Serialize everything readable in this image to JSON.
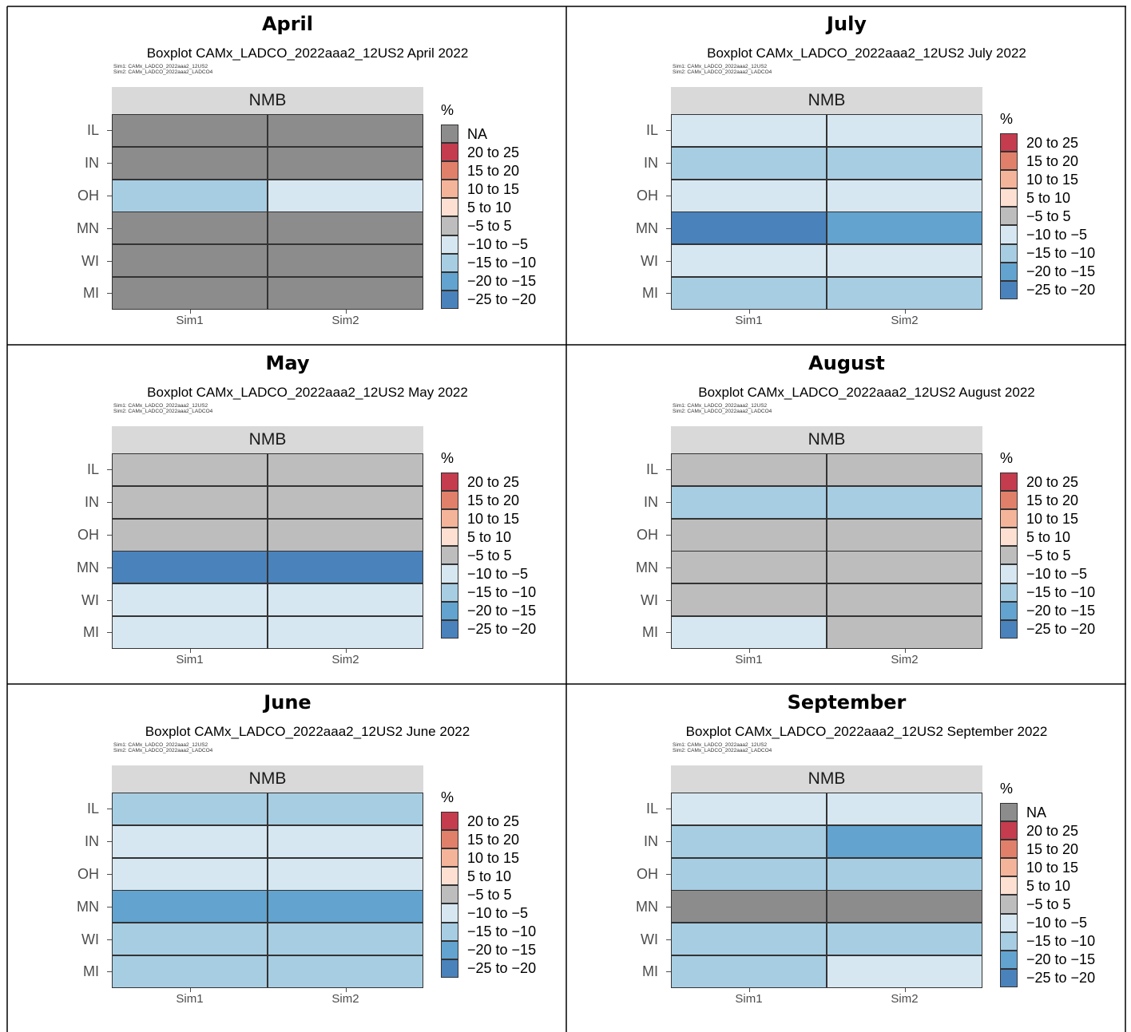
{
  "legend_title": "%",
  "x_categories": [
    "Sim1",
    "Sim2"
  ],
  "y_categories": [
    "IL",
    "IN",
    "OH",
    "MN",
    "WI",
    "MI"
  ],
  "sim_note": [
    "Sim1: CAMx_LADCO_2022aaa2_12US2",
    "Sim2: CAMx_LADCO_2022aaa2_LADCO4"
  ],
  "facet_label": "NMB",
  "bins": [
    {
      "label": "NA",
      "color": "#8c8c8c"
    },
    {
      "label": "20 to 25",
      "color": "#c43c4e"
    },
    {
      "label": "15 to 20",
      "color": "#e0806a"
    },
    {
      "label": "10 to 15",
      "color": "#f4b49a"
    },
    {
      "label": "5 to 10",
      "color": "#fde0d2"
    },
    {
      "label": "−5 to 5",
      "color": "#bdbdbd"
    },
    {
      "label": "−10 to −5",
      "color": "#d7e7f1"
    },
    {
      "label": "−15 to −10",
      "color": "#a7cde2"
    },
    {
      "label": "−20 to −15",
      "color": "#62a3cf"
    },
    {
      "label": "−25 to −20",
      "color": "#4a82bc"
    }
  ],
  "chart_data": [
    {
      "type": "heatmap",
      "month": "April",
      "title": "Boxplot CAMx_LADCO_2022aaa2_12US2 April 2022",
      "show_na": true,
      "values": [
        [
          "NA",
          "NA"
        ],
        [
          "NA",
          "NA"
        ],
        [
          "−15 to −10",
          "−10 to −5"
        ],
        [
          "NA",
          "NA"
        ],
        [
          "NA",
          "NA"
        ],
        [
          "NA",
          "NA"
        ]
      ]
    },
    {
      "type": "heatmap",
      "month": "July",
      "title": "Boxplot CAMx_LADCO_2022aaa2_12US2 July 2022",
      "show_na": false,
      "values": [
        [
          "−10 to −5",
          "−10 to −5"
        ],
        [
          "−15 to −10",
          "−15 to −10"
        ],
        [
          "−10 to −5",
          "−10 to −5"
        ],
        [
          "−25 to −20",
          "−20 to −15"
        ],
        [
          "−10 to −5",
          "−10 to −5"
        ],
        [
          "−15 to −10",
          "−15 to −10"
        ]
      ]
    },
    {
      "type": "heatmap",
      "month": "May",
      "title": "Boxplot CAMx_LADCO_2022aaa2_12US2 May 2022",
      "show_na": false,
      "values": [
        [
          "−5 to 5",
          "−5 to 5"
        ],
        [
          "−5 to 5",
          "−5 to 5"
        ],
        [
          "−5 to 5",
          "−5 to 5"
        ],
        [
          "−25 to −20",
          "−25 to −20"
        ],
        [
          "−10 to −5",
          "−10 to −5"
        ],
        [
          "−10 to −5",
          "−10 to −5"
        ]
      ]
    },
    {
      "type": "heatmap",
      "month": "August",
      "title": "Boxplot CAMx_LADCO_2022aaa2_12US2 August 2022",
      "show_na": false,
      "values": [
        [
          "−5 to 5",
          "−5 to 5"
        ],
        [
          "−15 to −10",
          "−15 to −10"
        ],
        [
          "−5 to 5",
          "−5 to 5"
        ],
        [
          "−5 to 5",
          "−5 to 5"
        ],
        [
          "−5 to 5",
          "−5 to 5"
        ],
        [
          "−10 to −5",
          "−5 to 5"
        ]
      ]
    },
    {
      "type": "heatmap",
      "month": "June",
      "title": "Boxplot CAMx_LADCO_2022aaa2_12US2 June 2022",
      "show_na": false,
      "values": [
        [
          "−15 to −10",
          "−15 to −10"
        ],
        [
          "−10 to −5",
          "−10 to −5"
        ],
        [
          "−10 to −5",
          "−10 to −5"
        ],
        [
          "−20 to −15",
          "−20 to −15"
        ],
        [
          "−15 to −10",
          "−15 to −10"
        ],
        [
          "−15 to −10",
          "−15 to −10"
        ]
      ]
    },
    {
      "type": "heatmap",
      "month": "September",
      "title": "Boxplot CAMx_LADCO_2022aaa2_12US2 September 2022",
      "show_na": true,
      "values": [
        [
          "−10 to −5",
          "−10 to −5"
        ],
        [
          "−15 to −10",
          "−20 to −15"
        ],
        [
          "−15 to −10",
          "−15 to −10"
        ],
        [
          "NA",
          "NA"
        ],
        [
          "−15 to −10",
          "−15 to −10"
        ],
        [
          "−15 to −10",
          "−10 to −5"
        ]
      ]
    }
  ]
}
